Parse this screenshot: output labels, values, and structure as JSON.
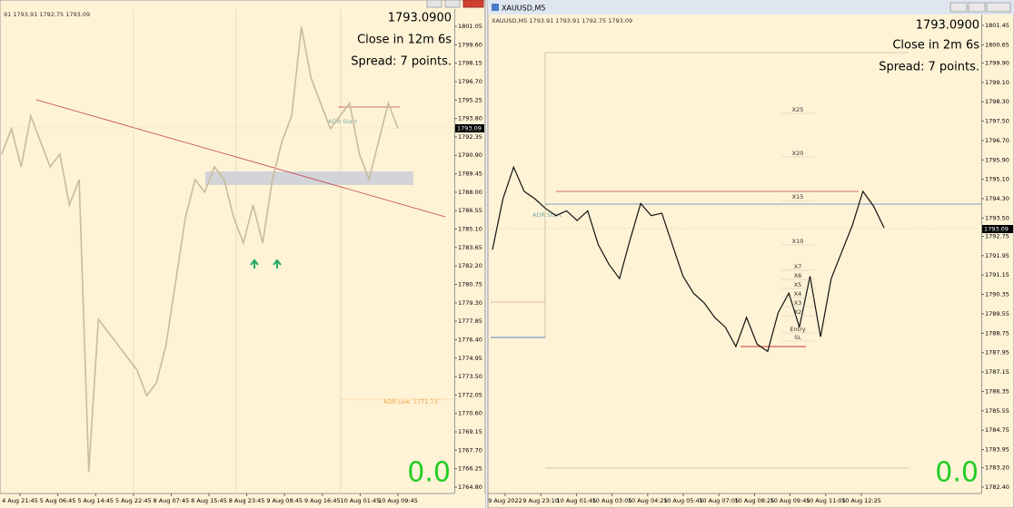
{
  "windows": [
    {
      "header": "91 1793.91 1792.75 1793.09",
      "price": "1793.0900",
      "timer": "Close in 12m 6s",
      "spread": "Spread: 7 points.",
      "counter": "0.0",
      "price_tag": "1793.09",
      "adr_start": "ADR Start",
      "adr_low": "ADR Low: 1771.73",
      "yticks": [
        "1801.05",
        "1799.60",
        "1798.15",
        "1796.70",
        "1795.25",
        "1793.80",
        "1792.35",
        "1790.90",
        "1789.45",
        "1788.00",
        "1786.55",
        "1785.10",
        "1783.65",
        "1782.20",
        "1780.75",
        "1779.30",
        "1777.85",
        "1776.40",
        "1774.95",
        "1773.50",
        "1772.05",
        "1770.60",
        "1769.15",
        "1767.70",
        "1766.25",
        "1764.80"
      ],
      "xticks": [
        "4 Aug 21:45",
        "5 Aug 06:45",
        "5 Aug 14:45",
        "5 Aug 22:45",
        "8 Aug 07:45",
        "8 Aug 15:45",
        "8 Aug 23:45",
        "9 Aug 08:45",
        "9 Aug 16:45",
        "10 Aug 01:45",
        "10 Aug 09:45"
      ],
      "closes": [
        1791,
        1793,
        1790,
        1794,
        1792,
        1790,
        1791,
        1787,
        1789,
        1766,
        1778,
        1777,
        1776,
        1775,
        1774,
        1772,
        1773,
        1776,
        1781,
        1786,
        1789,
        1788,
        1790,
        1789,
        1786,
        1784,
        1787,
        1784,
        1789,
        1792,
        1794,
        1801,
        1797,
        1795,
        1793,
        1794,
        1795,
        1791,
        1789,
        1792,
        1795,
        1793
      ]
    },
    {
      "title": "XAUUSD,M5",
      "header": "XAUUSD,M5  1793.91 1793.91 1792.75 1793.09",
      "price": "1793.0900",
      "timer": "Close in 2m 6s",
      "spread": "Spread: 7 points.",
      "counter": "0.0",
      "price_tag": "1793.09",
      "adr_start": "ADR Start",
      "levels": [
        "X25",
        "X20",
        "X15",
        "X10",
        "X7",
        "X6",
        "X5",
        "X4",
        "X3",
        "X2",
        "Entry",
        "SL"
      ],
      "yticks": [
        "1801.45",
        "1800.65",
        "1799.90",
        "1799.10",
        "1798.30",
        "1797.50",
        "1796.70",
        "1795.90",
        "1795.10",
        "1794.30",
        "1793.50",
        "1792.75",
        "1791.95",
        "1791.15",
        "1790.35",
        "1789.55",
        "1788.75",
        "1787.95",
        "1787.15",
        "1786.35",
        "1785.55",
        "1784.75",
        "1783.95",
        "1783.20",
        "1782.40"
      ],
      "xticks": [
        "9 Aug 2022",
        "9 Aug 23:10",
        "10 Aug 01:45",
        "10 Aug 03:05",
        "10 Aug 04:25",
        "10 Aug 05:45",
        "10 Aug 07:05",
        "10 Aug 08:25",
        "10 Aug 09:45",
        "10 Aug 11:05",
        "10 Aug 12:25"
      ],
      "closes": [
        1792.2,
        1794.3,
        1795.6,
        1794.6,
        1794.3,
        1793.9,
        1793.6,
        1793.8,
        1793.4,
        1793.8,
        1792.4,
        1791.6,
        1791.0,
        1792.6,
        1794.1,
        1793.6,
        1793.7,
        1792.4,
        1791.1,
        1790.4,
        1790.0,
        1789.4,
        1789.0,
        1788.2,
        1789.4,
        1788.3,
        1788.0,
        1789.6,
        1790.4,
        1789.0,
        1791.1,
        1788.6,
        1791.0,
        1792.1,
        1793.2,
        1794.6,
        1794.0,
        1793.1
      ]
    }
  ]
}
